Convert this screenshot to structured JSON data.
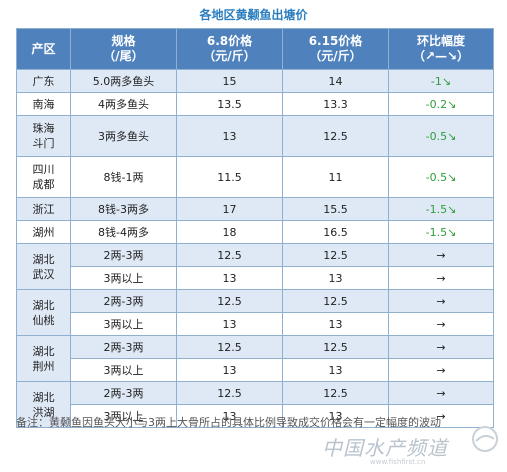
{
  "title": "各地区黄颡鱼出塘价",
  "headers": [
    {
      "line1": "产区",
      "line2": ""
    },
    {
      "line1": "规格",
      "line2": "（/尾）"
    },
    {
      "line1": "6.8价格",
      "line2": "（元/斤）"
    },
    {
      "line1": "6.15价格",
      "line2": "（元/斤）"
    },
    {
      "line1": "环比幅度",
      "line2": "（↗—↘）"
    }
  ],
  "rows": [
    {
      "region1": "广东",
      "region2": "",
      "spec": "5.0两多鱼头",
      "price1": "15",
      "price2": "14",
      "change": "-1↘",
      "status": "down"
    },
    {
      "region1": "南海",
      "region2": "",
      "spec": "4两多鱼头",
      "price1": "13.5",
      "price2": "13.3",
      "change": "-0.2↘",
      "status": "down"
    },
    {
      "region1": "珠海",
      "region2": "斗门",
      "spec": "3两多鱼头",
      "price1": "13",
      "price2": "12.5",
      "change": "-0.5↘",
      "status": "down"
    },
    {
      "region1": "四川",
      "region2": "成都",
      "spec": "8钱-1两",
      "price1": "11.5",
      "price2": "11",
      "change": "-0.5↘",
      "status": "down"
    },
    {
      "region1": "浙江",
      "region2": "",
      "spec": "8钱-3两多",
      "price1": "17",
      "price2": "15.5",
      "change": "-1.5↘",
      "status": "down"
    },
    {
      "region1": "湖州",
      "region2": "",
      "spec": "8钱-4两多",
      "price1": "18",
      "price2": "16.5",
      "change": "-1.5↘",
      "status": "down"
    },
    {
      "region1": "湖北",
      "region2": "武汉",
      "spec": "2两-3两",
      "price1": "12.5",
      "price2": "12.5",
      "change": "→",
      "status": "flat"
    },
    {
      "region1": "",
      "region2": "",
      "spec": "3两以上",
      "price1": "13",
      "price2": "13",
      "change": "→",
      "status": "flat"
    },
    {
      "region1": "湖北",
      "region2": "仙桃",
      "spec": "2两-3两",
      "price1": "12.5",
      "price2": "12.5",
      "change": "→",
      "status": "flat"
    },
    {
      "region1": "",
      "region2": "",
      "spec": "3两以上",
      "price1": "13",
      "price2": "13",
      "change": "→",
      "status": "flat"
    },
    {
      "region1": "湖北",
      "region2": "荆州",
      "spec": "2两-3两",
      "price1": "12.5",
      "price2": "12.5",
      "change": "→",
      "status": "flat"
    },
    {
      "region1": "",
      "region2": "",
      "spec": "3两以上",
      "price1": "13",
      "price2": "13",
      "change": "→",
      "status": "flat"
    },
    {
      "region1": "湖北",
      "region2": "洪湖",
      "spec": "2两-3两",
      "price1": "12.5",
      "price2": "12.5",
      "change": "→",
      "status": "flat"
    },
    {
      "region1": "",
      "region2": "",
      "spec": "3两以上",
      "price1": "13",
      "price2": "13",
      "change": "→",
      "status": "flat"
    }
  ],
  "footnote": "备注：黄颡鱼因鱼头大小与3两上大骨所占的具体比例导致成交价格会有一定幅度的波动",
  "watermark": {
    "text": "中国水产频道",
    "url": "www.fishfirst.cn"
  },
  "colors": {
    "header_bg": "#4f81bd",
    "row_band": "#dfe9f6",
    "title": "#2a7ec0",
    "down": "#2e9e3a"
  }
}
